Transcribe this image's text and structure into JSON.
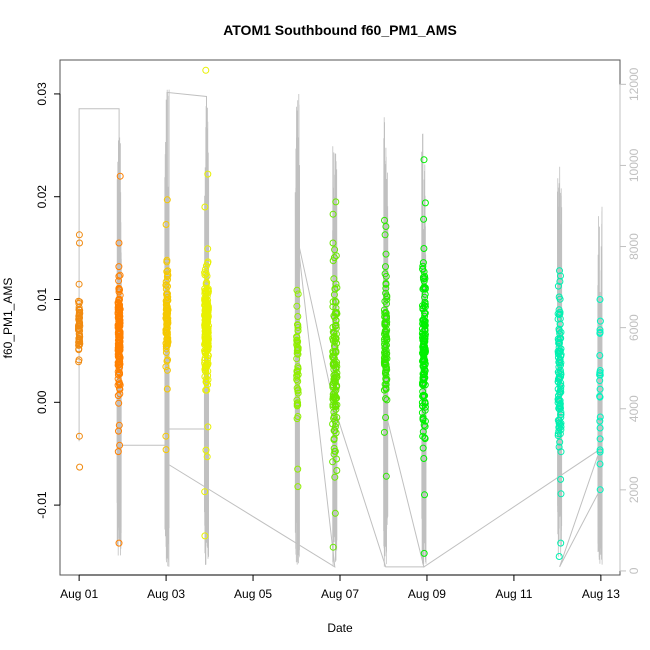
{
  "chart_data": {
    "type": "scatter",
    "title": "ATOM1 Southbound f60_PM1_AMS",
    "xlabel": "Date",
    "ylabel": "f60_PM1_AMS",
    "x_ticks": [
      "Aug 01",
      "Aug 03",
      "Aug 05",
      "Aug 07",
      "Aug 09",
      "Aug 11",
      "Aug 13"
    ],
    "x_tick_days": [
      1,
      3,
      5,
      7,
      9,
      11,
      13
    ],
    "xlim": [
      0.56,
      13.44
    ],
    "ylim": [
      -0.0168,
      0.0333
    ],
    "y_ticks": [
      -0.01,
      0.0,
      0.01,
      0.02,
      0.03
    ],
    "y_tick_labels": [
      "-0.01",
      "0.00",
      "0.01",
      "0.02",
      "0.03"
    ],
    "y2lim": [
      -100,
      12600
    ],
    "y2_ticks": [
      0,
      2000,
      4000,
      6000,
      8000,
      10000,
      12000
    ],
    "y2_tick_labels": [
      "0",
      "2000",
      "4000",
      "6000",
      "8000",
      "10000",
      "12000"
    ],
    "line_color": "#c0c0c0",
    "box_color": "#555555",
    "clusters": [
      {
        "day": 1.0,
        "spread": 0.03,
        "center": 0.0075,
        "sd": 0.0015,
        "n": 55,
        "color": "#f08a10",
        "extras": [
          0.0163,
          0.0155,
          -0.0033,
          -0.0063
        ]
      },
      {
        "day": 1.92,
        "spread": 0.05,
        "center": 0.0065,
        "sd": 0.0025,
        "n": 150,
        "color": "#ff8000",
        "extras": [
          0.022,
          0.0155,
          0.0132,
          -0.0028,
          -0.0048,
          -0.0137
        ]
      },
      {
        "day": 3.02,
        "spread": 0.05,
        "center": 0.008,
        "sd": 0.0025,
        "n": 85,
        "color": "#f5c800",
        "extras": [
          0.0197,
          0.0173,
          -0.0046,
          -0.0033
        ]
      },
      {
        "day": 3.93,
        "spread": 0.09,
        "center": 0.0075,
        "sd": 0.003,
        "n": 200,
        "color": "#e8f000",
        "extras": [
          0.0323,
          0.0222,
          0.019,
          -0.0087,
          -0.013,
          -0.0053
        ]
      },
      {
        "day": 6.02,
        "spread": 0.04,
        "center": 0.004,
        "sd": 0.003,
        "n": 45,
        "color": "#90ee00",
        "extras": [
          0.0109,
          -0.0065,
          -0.0082
        ]
      },
      {
        "day": 6.88,
        "spread": 0.1,
        "center": 0.0045,
        "sd": 0.0045,
        "n": 130,
        "color": "#6ae800",
        "extras": [
          0.0195,
          0.0183,
          -0.0108,
          -0.0141,
          0.0155
        ]
      },
      {
        "day": 8.05,
        "spread": 0.06,
        "center": 0.006,
        "sd": 0.0035,
        "n": 90,
        "color": "#30e800",
        "extras": [
          0.0177,
          0.0171,
          0.0163,
          -0.0072
        ]
      },
      {
        "day": 8.93,
        "spread": 0.07,
        "center": 0.005,
        "sd": 0.004,
        "n": 150,
        "color": "#00f000",
        "extras": [
          0.0236,
          0.0194,
          -0.0147,
          -0.009,
          0.0178
        ]
      },
      {
        "day": 12.05,
        "spread": 0.07,
        "center": 0.003,
        "sd": 0.004,
        "n": 110,
        "color": "#00f0b0",
        "extras": [
          0.0128,
          0.0123,
          -0.0137,
          -0.015,
          -0.0089,
          -0.0075
        ]
      },
      {
        "day": 12.98,
        "spread": 0.02,
        "center": 0.002,
        "sd": 0.004,
        "n": 18,
        "color": "#00f5c0",
        "extras": [
          0.01,
          0.0067,
          -0.0085,
          -0.006,
          -0.0025
        ]
      }
    ],
    "spikes": [
      {
        "day": 1.92,
        "top": 11000,
        "bottom": 300
      },
      {
        "day": 3.02,
        "top": 12300,
        "bottom": 100
      },
      {
        "day": 3.93,
        "top": 11500,
        "bottom": 100
      },
      {
        "day": 6.02,
        "top": 11900,
        "bottom": 100
      },
      {
        "day": 6.88,
        "top": 10500,
        "bottom": 100
      },
      {
        "day": 8.05,
        "top": 11600,
        "bottom": 100
      },
      {
        "day": 8.93,
        "top": 11000,
        "bottom": 100
      },
      {
        "day": 12.05,
        "top": 10100,
        "bottom": 300
      },
      {
        "day": 12.98,
        "top": 9000,
        "bottom": 100
      }
    ],
    "connectors": [
      [
        1.0,
        3200
      ],
      [
        1.0,
        11400
      ],
      [
        1.92,
        11400
      ],
      [
        1.92,
        3100
      ],
      [
        3.02,
        3100
      ],
      [
        3.02,
        3500
      ],
      [
        3.93,
        3500
      ],
      [
        3.93,
        11700
      ],
      [
        3.02,
        11800
      ],
      [
        3.02,
        2650
      ],
      [
        6.88,
        100
      ],
      [
        6.02,
        8200
      ],
      [
        6.88,
        4000
      ],
      [
        8.05,
        100
      ],
      [
        8.93,
        100
      ],
      [
        8.05,
        3900
      ],
      [
        8.93,
        100
      ],
      [
        12.98,
        3000
      ],
      [
        12.05,
        100
      ],
      [
        12.98,
        2000
      ]
    ]
  }
}
